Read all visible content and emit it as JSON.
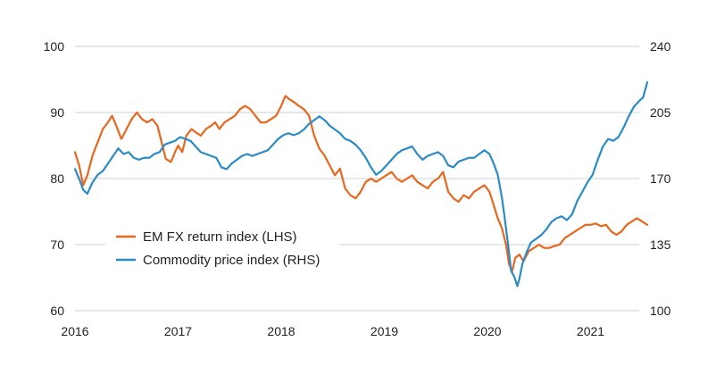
{
  "chart_data": {
    "type": "line",
    "title": "",
    "xlabel": "",
    "ylabel": "",
    "x_ticks": [
      "2016",
      "2017",
      "2018",
      "2019",
      "2020",
      "2021"
    ],
    "x_range": [
      2016.0,
      2021.55
    ],
    "y_left": {
      "range": [
        60,
        100
      ],
      "ticks": [
        "60",
        "70",
        "80",
        "90",
        "100"
      ]
    },
    "y_right": {
      "range": [
        100,
        240
      ],
      "ticks": [
        "100",
        "135",
        "170",
        "205",
        "240"
      ]
    },
    "grid": "horizontal",
    "legend_position": "lower-left",
    "series": [
      {
        "name": "EM FX return index (LHS)",
        "axis": "left",
        "color": "#e8671e",
        "points": [
          [
            2016.0,
            84.0
          ],
          [
            2016.04,
            82.0
          ],
          [
            2016.08,
            79.0
          ],
          [
            2016.12,
            80.5
          ],
          [
            2016.17,
            83.5
          ],
          [
            2016.22,
            85.5
          ],
          [
            2016.27,
            87.5
          ],
          [
            2016.32,
            88.5
          ],
          [
            2016.36,
            89.5
          ],
          [
            2016.4,
            88.0
          ],
          [
            2016.45,
            86.0
          ],
          [
            2016.5,
            87.5
          ],
          [
            2016.55,
            89.0
          ],
          [
            2016.6,
            90.0
          ],
          [
            2016.65,
            89.0
          ],
          [
            2016.7,
            88.5
          ],
          [
            2016.75,
            89.0
          ],
          [
            2016.8,
            88.0
          ],
          [
            2016.84,
            85.5
          ],
          [
            2016.88,
            83.0
          ],
          [
            2016.93,
            82.5
          ],
          [
            2016.97,
            84.0
          ],
          [
            2017.0,
            85.0
          ],
          [
            2017.04,
            84.0
          ],
          [
            2017.08,
            86.5
          ],
          [
            2017.13,
            87.5
          ],
          [
            2017.17,
            87.0
          ],
          [
            2017.22,
            86.5
          ],
          [
            2017.27,
            87.5
          ],
          [
            2017.32,
            88.0
          ],
          [
            2017.36,
            88.5
          ],
          [
            2017.4,
            87.5
          ],
          [
            2017.45,
            88.5
          ],
          [
            2017.5,
            89.0
          ],
          [
            2017.55,
            89.5
          ],
          [
            2017.6,
            90.5
          ],
          [
            2017.65,
            91.0
          ],
          [
            2017.7,
            90.5
          ],
          [
            2017.75,
            89.5
          ],
          [
            2017.8,
            88.5
          ],
          [
            2017.85,
            88.5
          ],
          [
            2017.9,
            89.0
          ],
          [
            2017.95,
            89.5
          ],
          [
            2018.0,
            91.0
          ],
          [
            2018.04,
            92.5
          ],
          [
            2018.08,
            92.0
          ],
          [
            2018.13,
            91.5
          ],
          [
            2018.17,
            91.0
          ],
          [
            2018.22,
            90.5
          ],
          [
            2018.27,
            89.5
          ],
          [
            2018.32,
            86.5
          ],
          [
            2018.37,
            84.5
          ],
          [
            2018.42,
            83.5
          ],
          [
            2018.47,
            82.0
          ],
          [
            2018.52,
            80.5
          ],
          [
            2018.57,
            81.5
          ],
          [
            2018.62,
            78.5
          ],
          [
            2018.67,
            77.5
          ],
          [
            2018.72,
            77.0
          ],
          [
            2018.77,
            78.0
          ],
          [
            2018.82,
            79.5
          ],
          [
            2018.87,
            80.0
          ],
          [
            2018.92,
            79.5
          ],
          [
            2018.97,
            80.0
          ],
          [
            2019.02,
            80.5
          ],
          [
            2019.07,
            81.0
          ],
          [
            2019.12,
            80.0
          ],
          [
            2019.17,
            79.5
          ],
          [
            2019.22,
            80.0
          ],
          [
            2019.27,
            80.5
          ],
          [
            2019.32,
            79.5
          ],
          [
            2019.37,
            79.0
          ],
          [
            2019.42,
            78.5
          ],
          [
            2019.47,
            79.5
          ],
          [
            2019.52,
            80.0
          ],
          [
            2019.57,
            81.0
          ],
          [
            2019.62,
            78.0
          ],
          [
            2019.67,
            77.0
          ],
          [
            2019.72,
            76.5
          ],
          [
            2019.77,
            77.5
          ],
          [
            2019.82,
            77.0
          ],
          [
            2019.87,
            78.0
          ],
          [
            2019.92,
            78.5
          ],
          [
            2019.97,
            79.0
          ],
          [
            2020.02,
            78.0
          ],
          [
            2020.06,
            76.0
          ],
          [
            2020.1,
            74.0
          ],
          [
            2020.14,
            72.5
          ],
          [
            2020.18,
            70.0
          ],
          [
            2020.21,
            67.0
          ],
          [
            2020.24,
            66.0
          ],
          [
            2020.27,
            68.0
          ],
          [
            2020.31,
            68.5
          ],
          [
            2020.35,
            67.5
          ],
          [
            2020.4,
            69.0
          ],
          [
            2020.45,
            69.5
          ],
          [
            2020.5,
            70.0
          ],
          [
            2020.55,
            69.5
          ],
          [
            2020.6,
            69.5
          ],
          [
            2020.65,
            69.8
          ],
          [
            2020.7,
            70.0
          ],
          [
            2020.75,
            71.0
          ],
          [
            2020.8,
            71.5
          ],
          [
            2020.85,
            72.0
          ],
          [
            2020.9,
            72.5
          ],
          [
            2020.95,
            73.0
          ],
          [
            2021.0,
            73.0
          ],
          [
            2021.05,
            73.2
          ],
          [
            2021.1,
            72.8
          ],
          [
            2021.15,
            73.0
          ],
          [
            2021.2,
            72.0
          ],
          [
            2021.25,
            71.5
          ],
          [
            2021.3,
            72.0
          ],
          [
            2021.35,
            73.0
          ],
          [
            2021.4,
            73.5
          ],
          [
            2021.45,
            74.0
          ],
          [
            2021.5,
            73.5
          ],
          [
            2021.55,
            73.0
          ]
        ]
      },
      {
        "name": "Commodity price index (RHS)",
        "axis": "right",
        "color": "#2a8bc6",
        "points": [
          [
            2016.0,
            175
          ],
          [
            2016.04,
            170
          ],
          [
            2016.08,
            164
          ],
          [
            2016.12,
            162
          ],
          [
            2016.17,
            168
          ],
          [
            2016.22,
            172
          ],
          [
            2016.27,
            174
          ],
          [
            2016.32,
            178
          ],
          [
            2016.37,
            182
          ],
          [
            2016.42,
            186
          ],
          [
            2016.47,
            183
          ],
          [
            2016.52,
            184
          ],
          [
            2016.57,
            181
          ],
          [
            2016.62,
            180
          ],
          [
            2016.67,
            181
          ],
          [
            2016.72,
            181
          ],
          [
            2016.77,
            183
          ],
          [
            2016.82,
            184
          ],
          [
            2016.87,
            188
          ],
          [
            2016.92,
            189
          ],
          [
            2016.97,
            190
          ],
          [
            2017.02,
            192
          ],
          [
            2017.07,
            191
          ],
          [
            2017.12,
            190
          ],
          [
            2017.17,
            187
          ],
          [
            2017.22,
            184
          ],
          [
            2017.27,
            183
          ],
          [
            2017.32,
            182
          ],
          [
            2017.37,
            181
          ],
          [
            2017.42,
            176
          ],
          [
            2017.47,
            175
          ],
          [
            2017.52,
            178
          ],
          [
            2017.57,
            180
          ],
          [
            2017.62,
            182
          ],
          [
            2017.67,
            183
          ],
          [
            2017.72,
            182
          ],
          [
            2017.77,
            183
          ],
          [
            2017.82,
            184
          ],
          [
            2017.87,
            185
          ],
          [
            2017.92,
            188
          ],
          [
            2017.97,
            191
          ],
          [
            2018.02,
            193
          ],
          [
            2018.07,
            194
          ],
          [
            2018.12,
            193
          ],
          [
            2018.17,
            194
          ],
          [
            2018.22,
            196
          ],
          [
            2018.27,
            199
          ],
          [
            2018.32,
            201
          ],
          [
            2018.37,
            203
          ],
          [
            2018.42,
            201
          ],
          [
            2018.47,
            198
          ],
          [
            2018.52,
            196
          ],
          [
            2018.57,
            194
          ],
          [
            2018.62,
            191
          ],
          [
            2018.67,
            190
          ],
          [
            2018.72,
            188
          ],
          [
            2018.77,
            185
          ],
          [
            2018.82,
            181
          ],
          [
            2018.87,
            176
          ],
          [
            2018.92,
            172
          ],
          [
            2018.97,
            174
          ],
          [
            2019.02,
            177
          ],
          [
            2019.07,
            180
          ],
          [
            2019.12,
            183
          ],
          [
            2019.17,
            185
          ],
          [
            2019.22,
            186
          ],
          [
            2019.27,
            187
          ],
          [
            2019.32,
            183
          ],
          [
            2019.37,
            180
          ],
          [
            2019.42,
            182
          ],
          [
            2019.47,
            183
          ],
          [
            2019.52,
            184
          ],
          [
            2019.57,
            182
          ],
          [
            2019.62,
            177
          ],
          [
            2019.67,
            176
          ],
          [
            2019.72,
            179
          ],
          [
            2019.77,
            180
          ],
          [
            2019.82,
            181
          ],
          [
            2019.87,
            181
          ],
          [
            2019.92,
            183
          ],
          [
            2019.97,
            185
          ],
          [
            2020.02,
            183
          ],
          [
            2020.06,
            178
          ],
          [
            2020.1,
            172
          ],
          [
            2020.14,
            160
          ],
          [
            2020.17,
            148
          ],
          [
            2020.2,
            135
          ],
          [
            2020.23,
            121
          ],
          [
            2020.26,
            118
          ],
          [
            2020.29,
            113
          ],
          [
            2020.31,
            117
          ],
          [
            2020.34,
            125
          ],
          [
            2020.38,
            131
          ],
          [
            2020.42,
            136
          ],
          [
            2020.47,
            138
          ],
          [
            2020.52,
            140
          ],
          [
            2020.57,
            143
          ],
          [
            2020.62,
            147
          ],
          [
            2020.67,
            149
          ],
          [
            2020.72,
            150
          ],
          [
            2020.77,
            148
          ],
          [
            2020.82,
            151
          ],
          [
            2020.87,
            158
          ],
          [
            2020.92,
            163
          ],
          [
            2020.97,
            168
          ],
          [
            2021.02,
            172
          ],
          [
            2021.07,
            180
          ],
          [
            2021.12,
            187
          ],
          [
            2021.17,
            191
          ],
          [
            2021.22,
            190
          ],
          [
            2021.27,
            192
          ],
          [
            2021.32,
            197
          ],
          [
            2021.37,
            203
          ],
          [
            2021.42,
            208
          ],
          [
            2021.47,
            211
          ],
          [
            2021.51,
            213
          ],
          [
            2021.55,
            221
          ]
        ]
      }
    ]
  }
}
